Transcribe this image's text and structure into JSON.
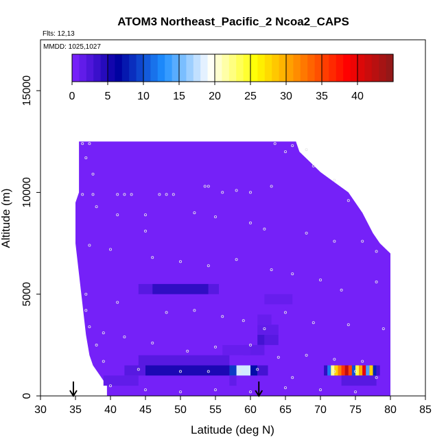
{
  "chart_data": {
    "type": "heatmap",
    "title": "ATOM3 Northeast_Pacific_2 Ncoa2_CAPS",
    "annotations": {
      "flights": "Flts: 12,13",
      "mmdd": "MMDD: 1025,1027"
    },
    "xlabel": "Latitude (deg N)",
    "ylabel": "Altitude (m)",
    "xlim": [
      30,
      85
    ],
    "ylim": [
      0,
      17500
    ],
    "x_ticks": [
      "30",
      "35",
      "40",
      "45",
      "50",
      "55",
      "60",
      "65",
      "70",
      "75",
      "80",
      "85"
    ],
    "y_ticks": [
      "0",
      "5000",
      "10000",
      "15000"
    ],
    "colorbar": {
      "range": [
        0,
        45
      ],
      "ticks": [
        "0",
        "5",
        "10",
        "15",
        "20",
        "25",
        "30",
        "35",
        "40"
      ],
      "colors": [
        "#7f24ff",
        "#00009f",
        "#1e90ff",
        "#ffffff",
        "#ffff00",
        "#ff7f00",
        "#ff0000",
        "#8b1a1a"
      ]
    },
    "background_value": 0.5,
    "envelope": [
      [
        35.5,
        12500
      ],
      [
        66.5,
        12500
      ],
      [
        67,
        12000
      ],
      [
        68.5,
        11500
      ],
      [
        70,
        11000
      ],
      [
        72,
        10500
      ],
      [
        74,
        10000
      ],
      [
        76,
        9000
      ],
      [
        77.5,
        8000
      ],
      [
        78.5,
        7500
      ],
      [
        80,
        7000
      ],
      [
        80,
        0
      ],
      [
        39.5,
        0
      ],
      [
        39.5,
        500
      ],
      [
        38.5,
        1000
      ],
      [
        37.5,
        1500
      ],
      [
        37,
        2000
      ],
      [
        36.5,
        3000
      ],
      [
        36,
        4500
      ],
      [
        35.5,
        6000
      ],
      [
        35,
        7500
      ],
      [
        35,
        9500
      ],
      [
        35.5,
        10000
      ],
      [
        35.5,
        12500
      ]
    ],
    "cells": [
      {
        "lat": [
          44,
          46
        ],
        "alt": [
          5000,
          5500
        ],
        "value": 2
      },
      {
        "lat": [
          46,
          54
        ],
        "alt": [
          5000,
          5500
        ],
        "value": 4
      },
      {
        "lat": [
          54,
          55.5
        ],
        "alt": [
          5000,
          5500
        ],
        "value": 2
      },
      {
        "lat": [
          42,
          45
        ],
        "alt": [
          1000,
          1500
        ],
        "value": 2
      },
      {
        "lat": [
          45,
          57
        ],
        "alt": [
          1000,
          1500
        ],
        "value": 5
      },
      {
        "lat": [
          57,
          58
        ],
        "alt": [
          1000,
          1500
        ],
        "value": 9
      },
      {
        "lat": [
          58,
          60
        ],
        "alt": [
          1000,
          1500
        ],
        "value": 18
      },
      {
        "lat": [
          60,
          61
        ],
        "alt": [
          1000,
          1500
        ],
        "value": 7
      },
      {
        "lat": [
          61,
          62.5
        ],
        "alt": [
          1000,
          1500
        ],
        "value": 3
      },
      {
        "lat": [
          44,
          57
        ],
        "alt": [
          1500,
          2000
        ],
        "value": 2
      },
      {
        "lat": [
          39,
          44
        ],
        "alt": [
          500,
          1000
        ],
        "value": 1.5
      },
      {
        "lat": [
          70.5,
          71
        ],
        "alt": [
          1000,
          1500
        ],
        "value": 4
      },
      {
        "lat": [
          71,
          71.5
        ],
        "alt": [
          1000,
          1500
        ],
        "value": 12
      },
      {
        "lat": [
          71.5,
          72
        ],
        "alt": [
          1000,
          1500
        ],
        "value": 22
      },
      {
        "lat": [
          72,
          72.5
        ],
        "alt": [
          1000,
          1500
        ],
        "value": 28
      },
      {
        "lat": [
          72.5,
          73
        ],
        "alt": [
          1000,
          1500
        ],
        "value": 32
      },
      {
        "lat": [
          73,
          73.5
        ],
        "alt": [
          1000,
          1500
        ],
        "value": 36
      },
      {
        "lat": [
          73.5,
          74
        ],
        "alt": [
          1000,
          1500
        ],
        "value": 42
      },
      {
        "lat": [
          74,
          74.5
        ],
        "alt": [
          1000,
          1500
        ],
        "value": 35
      },
      {
        "lat": [
          74.5,
          75
        ],
        "alt": [
          1000,
          1500
        ],
        "value": 10
      },
      {
        "lat": [
          75,
          75.5
        ],
        "alt": [
          1000,
          1500
        ],
        "value": 24
      },
      {
        "lat": [
          75.5,
          76
        ],
        "alt": [
          1000,
          1500
        ],
        "value": 30
      },
      {
        "lat": [
          76,
          76.5
        ],
        "alt": [
          1000,
          1500
        ],
        "value": 40
      },
      {
        "lat": [
          76.5,
          77
        ],
        "alt": [
          1000,
          1500
        ],
        "value": 14
      },
      {
        "lat": [
          77,
          77.5
        ],
        "alt": [
          1000,
          1500
        ],
        "value": 28
      },
      {
        "lat": [
          77.5,
          78
        ],
        "alt": [
          1000,
          1500
        ],
        "value": 8
      },
      {
        "lat": [
          78,
          78.5
        ],
        "alt": [
          1000,
          1500
        ],
        "value": 3
      },
      {
        "lat": [
          73,
          78
        ],
        "alt": [
          500,
          1000
        ],
        "value": 2
      },
      {
        "lat": [
          61,
          62
        ],
        "alt": [
          2500,
          3000
        ],
        "value": 3
      },
      {
        "lat": [
          62,
          64
        ],
        "alt": [
          2500,
          3000
        ],
        "value": 2
      },
      {
        "lat": [
          61,
          64
        ],
        "alt": [
          3000,
          3500
        ],
        "value": 1.5
      },
      {
        "lat": [
          61,
          63
        ],
        "alt": [
          3500,
          4000
        ],
        "value": 1.2
      },
      {
        "lat": [
          59,
          62
        ],
        "alt": [
          2000,
          2500
        ],
        "value": 1.5
      },
      {
        "lat": [
          62,
          66
        ],
        "alt": [
          4500,
          5000
        ],
        "value": 1.2
      },
      {
        "lat": [
          56,
          60
        ],
        "alt": [
          2000,
          2500
        ],
        "value": 1.2
      },
      {
        "lat": [
          57,
          58
        ],
        "alt": [
          500,
          1000
        ],
        "value": 1.5
      }
    ],
    "sample_points": [
      [
        36,
        12400
      ],
      [
        37,
        12400
      ],
      [
        36.5,
        11700
      ],
      [
        37.5,
        10900
      ],
      [
        36,
        9900
      ],
      [
        37.5,
        9900
      ],
      [
        41,
        9900
      ],
      [
        42,
        9900
      ],
      [
        43,
        9900
      ],
      [
        47,
        9900
      ],
      [
        48,
        9900
      ],
      [
        49,
        9900
      ],
      [
        53.5,
        10300
      ],
      [
        54,
        10300
      ],
      [
        56,
        10000
      ],
      [
        58,
        10100
      ],
      [
        60,
        10000
      ],
      [
        63,
        10300
      ],
      [
        66,
        12300
      ],
      [
        68,
        12100
      ],
      [
        69,
        11300
      ],
      [
        72,
        10600
      ],
      [
        74,
        9600
      ],
      [
        38,
        9300
      ],
      [
        41,
        8900
      ],
      [
        45,
        8900
      ],
      [
        52,
        9000
      ],
      [
        55,
        8800
      ],
      [
        60,
        8500
      ],
      [
        62,
        8200
      ],
      [
        68,
        8000
      ],
      [
        72,
        7600
      ],
      [
        76,
        7600
      ],
      [
        78,
        7100
      ],
      [
        37,
        7400
      ],
      [
        40,
        7200
      ],
      [
        46,
        6800
      ],
      [
        50,
        6600
      ],
      [
        54,
        6400
      ],
      [
        58,
        6700
      ],
      [
        63,
        6200
      ],
      [
        66,
        6000
      ],
      [
        70,
        5700
      ],
      [
        73,
        5200
      ],
      [
        78,
        5600
      ],
      [
        36.5,
        5000
      ],
      [
        41,
        4600
      ],
      [
        48,
        4100
      ],
      [
        52,
        4200
      ],
      [
        56,
        3900
      ],
      [
        59,
        3700
      ],
      [
        62,
        3300
      ],
      [
        65,
        4100
      ],
      [
        69,
        3600
      ],
      [
        74,
        3500
      ],
      [
        79,
        3300
      ],
      [
        38,
        2500
      ],
      [
        42,
        2900
      ],
      [
        46,
        2600
      ],
      [
        51,
        2200
      ],
      [
        55,
        2400
      ],
      [
        60,
        2500
      ],
      [
        64,
        1900
      ],
      [
        68,
        2000
      ],
      [
        72,
        1800
      ],
      [
        76,
        1700
      ],
      [
        39,
        1700
      ],
      [
        44,
        1300
      ],
      [
        50,
        1200
      ],
      [
        54,
        1200
      ],
      [
        58.5,
        1200
      ],
      [
        61,
        1300
      ],
      [
        66,
        900
      ],
      [
        72,
        1200
      ],
      [
        75,
        1200
      ],
      [
        78,
        900
      ],
      [
        40,
        500
      ],
      [
        45,
        300
      ],
      [
        50,
        200
      ],
      [
        55,
        300
      ],
      [
        60,
        200
      ],
      [
        65,
        400
      ],
      [
        70,
        300
      ],
      [
        75,
        200
      ],
      [
        39,
        3100
      ],
      [
        37,
        3400
      ],
      [
        36.5,
        4200
      ],
      [
        45,
        8100
      ],
      [
        63.5,
        12400
      ],
      [
        65,
        12000
      ]
    ],
    "arrows_lat": [
      34.7,
      61.2
    ]
  }
}
